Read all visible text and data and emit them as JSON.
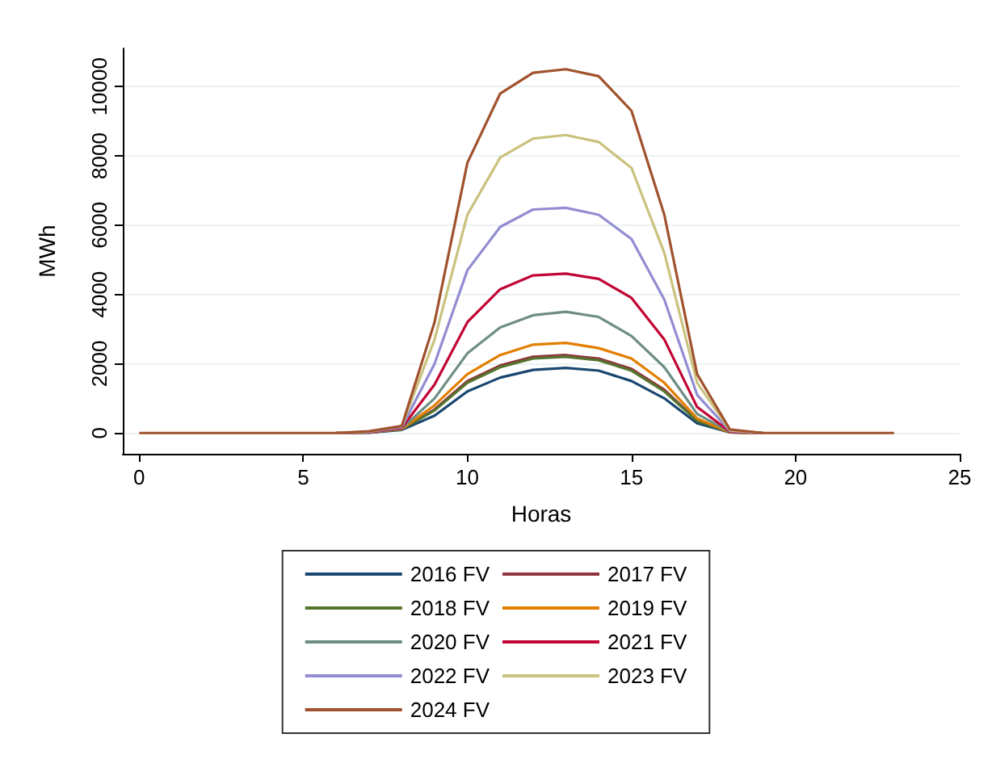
{
  "chart_data": {
    "type": "line",
    "xlabel": "Horas",
    "ylabel": "MWh",
    "x": [
      0,
      1,
      2,
      3,
      4,
      5,
      6,
      7,
      8,
      9,
      10,
      11,
      12,
      13,
      14,
      15,
      16,
      17,
      18,
      19,
      20,
      21,
      22,
      23
    ],
    "series": [
      {
        "name": "2016 FV",
        "color": "#1a476f",
        "values": [
          null,
          null,
          null,
          null,
          null,
          null,
          0,
          10,
          90,
          500,
          1200,
          1600,
          1820,
          1880,
          1800,
          1500,
          1000,
          280,
          20,
          0,
          null,
          null,
          null,
          null
        ]
      },
      {
        "name": "2017 FV",
        "color": "#90353b",
        "values": [
          null,
          null,
          null,
          null,
          null,
          null,
          0,
          20,
          110,
          680,
          1500,
          1950,
          2200,
          2250,
          2150,
          1850,
          1250,
          360,
          20,
          0,
          null,
          null,
          null,
          null
        ]
      },
      {
        "name": "2018 FV",
        "color": "#55752f",
        "values": [
          null,
          null,
          null,
          null,
          null,
          null,
          0,
          20,
          110,
          650,
          1450,
          1900,
          2150,
          2200,
          2100,
          1800,
          1200,
          350,
          20,
          0,
          null,
          null,
          null,
          null
        ]
      },
      {
        "name": "2019 FV",
        "color": "#e37e00",
        "values": [
          null,
          null,
          null,
          null,
          null,
          null,
          0,
          20,
          120,
          800,
          1700,
          2250,
          2550,
          2600,
          2450,
          2150,
          1450,
          420,
          20,
          0,
          null,
          null,
          null,
          null
        ]
      },
      {
        "name": "2020 FV",
        "color": "#6e8e84",
        "values": [
          null,
          null,
          null,
          null,
          null,
          null,
          0,
          20,
          130,
          1000,
          2300,
          3050,
          3400,
          3500,
          3350,
          2800,
          1900,
          550,
          30,
          0,
          null,
          null,
          null,
          null
        ]
      },
      {
        "name": "2021 FV",
        "color": "#c10534",
        "values": [
          null,
          null,
          null,
          null,
          null,
          null,
          0,
          20,
          150,
          1400,
          3200,
          4150,
          4550,
          4600,
          4450,
          3900,
          2700,
          750,
          40,
          0,
          null,
          null,
          null,
          null
        ]
      },
      {
        "name": "2022 FV",
        "color": "#938dd2",
        "values": [
          null,
          null,
          null,
          null,
          null,
          null,
          0,
          30,
          170,
          2000,
          4700,
          5950,
          6450,
          6500,
          6300,
          5600,
          3850,
          1100,
          60,
          0,
          null,
          null,
          null,
          null
        ]
      },
      {
        "name": "2023 FV",
        "color": "#cac27e",
        "values": [
          null,
          null,
          null,
          null,
          null,
          null,
          0,
          40,
          200,
          2700,
          6300,
          7950,
          8500,
          8600,
          8400,
          7650,
          5200,
          1450,
          80,
          0,
          null,
          null,
          null,
          null
        ]
      },
      {
        "name": "2024 FV",
        "color": "#a0522d",
        "values": [
          0,
          0,
          0,
          0,
          0,
          0,
          0,
          50,
          200,
          3200,
          7800,
          9800,
          10400,
          10500,
          10300,
          9300,
          6300,
          1700,
          100,
          0,
          0,
          0,
          0,
          0
        ]
      }
    ],
    "xlim": [
      -0.5,
      25
    ],
    "xticks": [
      0,
      5,
      10,
      15,
      20,
      25
    ],
    "ylim": [
      -600,
      11100
    ],
    "yticks": [
      0,
      2000,
      4000,
      6000,
      8000,
      10000
    ],
    "grid": "y",
    "legend": "bottom",
    "marker": "none",
    "line_style": "solid"
  }
}
